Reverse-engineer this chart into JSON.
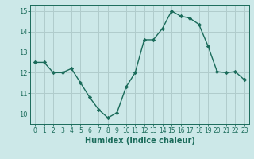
{
  "x": [
    0,
    1,
    2,
    3,
    4,
    5,
    6,
    7,
    8,
    9,
    10,
    11,
    12,
    13,
    14,
    15,
    16,
    17,
    18,
    19,
    20,
    21,
    22,
    23
  ],
  "y": [
    12.5,
    12.5,
    12.0,
    12.0,
    12.2,
    11.5,
    10.8,
    10.2,
    9.8,
    10.05,
    11.3,
    12.0,
    13.6,
    13.6,
    14.15,
    15.0,
    14.75,
    14.65,
    14.35,
    13.3,
    12.05,
    12.0,
    12.05,
    11.65
  ],
  "xlabel": "Humidex (Indice chaleur)",
  "ylim": [
    9.5,
    15.3
  ],
  "xlim": [
    -0.5,
    23.5
  ],
  "yticks": [
    10,
    11,
    12,
    13,
    14,
    15
  ],
  "xticks": [
    0,
    1,
    2,
    3,
    4,
    5,
    6,
    7,
    8,
    9,
    10,
    11,
    12,
    13,
    14,
    15,
    16,
    17,
    18,
    19,
    20,
    21,
    22,
    23
  ],
  "xtick_labels": [
    "0",
    "1",
    "2",
    "3",
    "4",
    "5",
    "6",
    "7",
    "8",
    "9",
    "10",
    "11",
    "12",
    "13",
    "14",
    "15",
    "16",
    "17",
    "18",
    "19",
    "20",
    "21",
    "22",
    "23"
  ],
  "line_color": "#1a6b5a",
  "marker": "D",
  "marker_size": 2.2,
  "bg_color": "#cce8e8",
  "grid_color": "#b0cccc",
  "line_width": 1.0,
  "tick_fontsize": 5.5,
  "xlabel_fontsize": 7.0
}
